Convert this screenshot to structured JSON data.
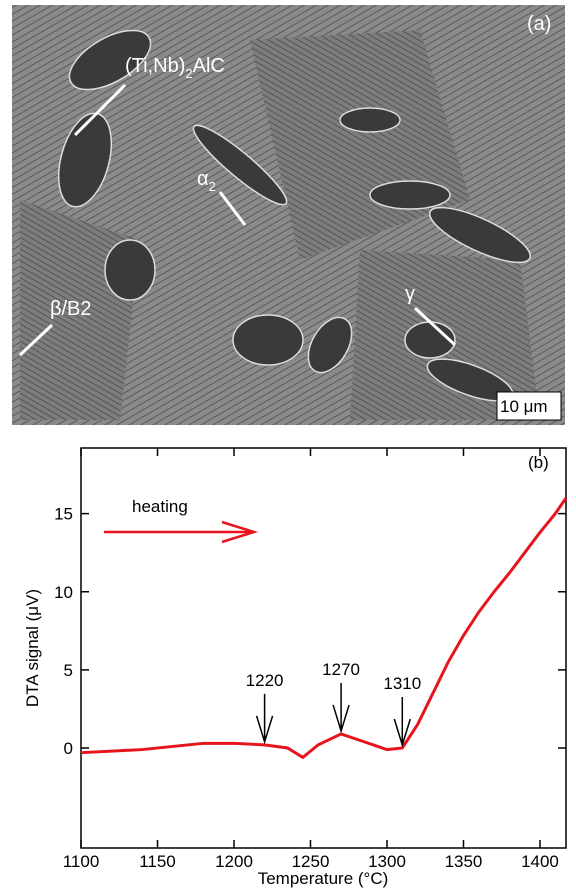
{
  "micrograph": {
    "panel": "(a)",
    "phase_carbide": [
      "(Ti,Nb)",
      "2",
      "AlC"
    ],
    "phase_alpha": [
      "α",
      "2"
    ],
    "phase_beta": "β/B2",
    "phase_gamma": "γ",
    "scale_bar": "10 μm"
  },
  "chart_data": {
    "type": "line",
    "panel": "(b)",
    "annotation": "heating",
    "x_label": "Temperature (°C)",
    "y_label": "DTA signal (μV)",
    "x": [
      1100,
      1120,
      1140,
      1160,
      1180,
      1200,
      1220,
      1235,
      1245,
      1255,
      1270,
      1285,
      1300,
      1310,
      1320,
      1330,
      1340,
      1350,
      1360,
      1370,
      1380,
      1390,
      1400,
      1410,
      1417
    ],
    "values": [
      -0.3,
      -0.2,
      -0.1,
      0.1,
      0.3,
      0.3,
      0.2,
      0,
      -0.6,
      0.2,
      0.9,
      0.4,
      -0.1,
      0,
      1.5,
      3.5,
      5.5,
      7.2,
      8.7,
      10,
      11.2,
      12.5,
      13.8,
      15,
      16
    ],
    "color": "#e8141c",
    "markers": [
      1220,
      1270,
      1310
    ],
    "xlim": [
      1100,
      1417
    ],
    "ylim": [
      -6.4,
      19.2
    ],
    "xticks": [
      1100,
      1150,
      1200,
      1250,
      1300,
      1350,
      1400
    ],
    "yticks": [
      0,
      5,
      10,
      15
    ]
  }
}
